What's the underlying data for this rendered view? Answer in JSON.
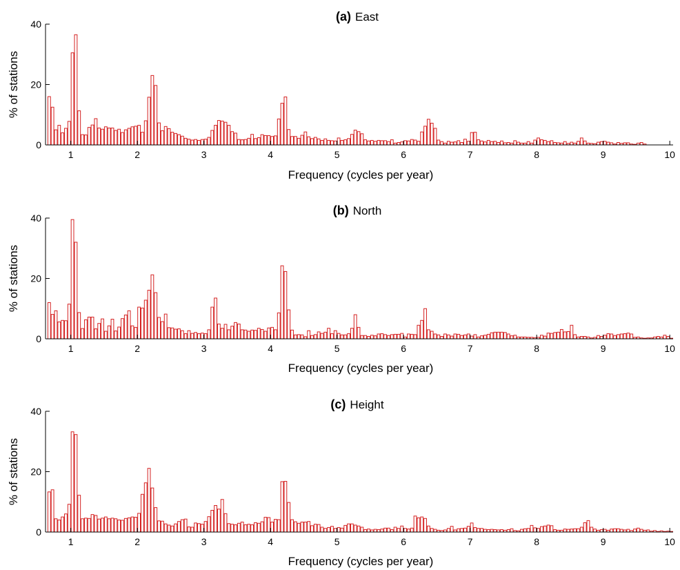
{
  "colors": {
    "bar_edge": "#d42020",
    "bar_fill": "#ffffff",
    "axis": "#000000"
  },
  "chart_data": [
    {
      "type": "bar",
      "title_prefix": "(a)",
      "title": "East",
      "xlabel": "Frequency (cycles per year)",
      "ylabel": "% of stations",
      "xlim": [
        0.62,
        10.05
      ],
      "ylim": [
        0,
        40
      ],
      "xticks": [
        "1",
        "2",
        "3",
        "4",
        "5",
        "6",
        "7",
        "8",
        "9",
        "10"
      ],
      "yticks": [
        "0",
        "20",
        "40"
      ],
      "bin_width": 0.05,
      "x_start": 0.65,
      "values": [
        16,
        12.5,
        5,
        6.5,
        4,
        5.5,
        7.8,
        30.5,
        36.5,
        11.3,
        3.4,
        3.3,
        5.8,
        6.6,
        8.7,
        5.6,
        5.2,
        6,
        5.6,
        5.6,
        4.8,
        5.2,
        4.1,
        5,
        5.5,
        6,
        6.2,
        6.5,
        4.2,
        8,
        15.8,
        23,
        19.7,
        7.3,
        4.7,
        6.1,
        5.4,
        4.2,
        3.8,
        3.4,
        2.9,
        2.2,
        1.9,
        1.6,
        1.8,
        1.5,
        1.8,
        1.9,
        2.5,
        4.8,
        6.5,
        8.1,
        7.9,
        7.5,
        6.5,
        4.4,
        3.9,
        1.8,
        1.7,
        1.8,
        2.2,
        3.5,
        2.1,
        2.4,
        3.4,
        3.1,
        3.1,
        2.8,
        3,
        8.6,
        13.8,
        15.9,
        5.1,
        2.8,
        2.8,
        2.2,
        3.2,
        4.3,
        2.7,
        2.1,
        2.5,
        2,
        1.5,
        2,
        1.5,
        1.4,
        1.3,
        2.3,
        1.5,
        1.7,
        2.1,
        3.5,
        4.9,
        4.4,
        3.7,
        1.7,
        1.3,
        1.5,
        1.2,
        1.5,
        1.4,
        1.4,
        1.1,
        1.7,
        0.6,
        0.8,
        1,
        1.4,
        1.3,
        1.8,
        1.6,
        1.2,
        4.3,
        6.2,
        8.5,
        7.2,
        5.5,
        1.6,
        1.1,
        0.6,
        1.2,
        0.9,
        1,
        1.4,
        0.8,
        1.9,
        1.2,
        4.1,
        4.2,
        1.7,
        1.3,
        1,
        1.5,
        1.1,
        1.2,
        0.8,
        1.3,
        0.7,
        0.8,
        0.6,
        1.4,
        0.9,
        0.6,
        0.6,
        1.1,
        0.6,
        1.6,
        2.3,
        1.7,
        1.5,
        1.1,
        1.4,
        0.8,
        0.7,
        0.6,
        1.1,
        0.5,
        0.9,
        0.6,
        1.2,
        2.3,
        1.3,
        0.6,
        0.5,
        0.4,
        0.9,
        1.1,
        1.2,
        0.9,
        0.7,
        0.3,
        0.8,
        0.5,
        0.7,
        0.7,
        0.3,
        0.2,
        0.6,
        0.8,
        0.3
      ]
    },
    {
      "type": "bar",
      "title_prefix": "(b)",
      "title": "North",
      "xlabel": "Frequency (cycles per year)",
      "ylabel": "% of stations",
      "xlim": [
        0.62,
        10.05
      ],
      "ylim": [
        0,
        40
      ],
      "xticks": [
        "1",
        "2",
        "3",
        "4",
        "5",
        "6",
        "7",
        "8",
        "9",
        "10"
      ],
      "yticks": [
        "0",
        "20",
        "40"
      ],
      "bin_width": 0.05,
      "x_start": 0.65,
      "values": [
        12,
        8.1,
        9.3,
        5.6,
        6.1,
        6,
        11.5,
        39.5,
        32,
        8.7,
        3.4,
        6.3,
        7.2,
        7.2,
        3.3,
        5.1,
        6.6,
        2.5,
        4.3,
        6.5,
        2.6,
        3.9,
        6.7,
        7.9,
        9.3,
        4.3,
        3.8,
        10.5,
        10.2,
        12.8,
        16.1,
        21.2,
        15.3,
        7.1,
        5.7,
        8.2,
        3.7,
        3.6,
        3.2,
        3.3,
        2.7,
        1.7,
        2.7,
        1.8,
        2.1,
        1.7,
        1.9,
        1.7,
        3,
        10.5,
        13.5,
        4.9,
        3.5,
        4.8,
        3,
        4.2,
        5.4,
        4.9,
        3,
        2.9,
        2.5,
        2.9,
        2.8,
        3.5,
        3.1,
        2.5,
        3.6,
        3.8,
        3,
        8.6,
        24.2,
        22.3,
        9.6,
        2.9,
        1.3,
        1.4,
        1.3,
        0.7,
        2.7,
        1.1,
        1.4,
        2.3,
        1.8,
        2.2,
        3.5,
        1.7,
        2.7,
        1.8,
        1.3,
        1.3,
        1.7,
        3.5,
        8,
        3.8,
        1.1,
        1.1,
        0.8,
        1.2,
        1,
        1.6,
        1.7,
        1.4,
        1.1,
        1.4,
        1.5,
        1.5,
        1.8,
        0.6,
        1.6,
        1.5,
        1.4,
        4.5,
        6.1,
        10,
        3,
        2.5,
        1.6,
        1.3,
        0.8,
        1.6,
        1.3,
        0.9,
        1.6,
        1.5,
        1.1,
        1.3,
        1.6,
        0.9,
        1.4,
        0.6,
        1,
        1.2,
        1.5,
        2,
        2.2,
        2.2,
        2.2,
        2.1,
        1.6,
        1,
        1.2,
        0.6,
        0.6,
        0.6,
        0.5,
        0.5,
        0.4,
        0.5,
        1.2,
        0.9,
        1.9,
        1.8,
        2.1,
        2.2,
        3.1,
        2.3,
        2.4,
        4.5,
        1.4,
        0.6,
        0.8,
        0.8,
        0.6,
        0.3,
        0.5,
        1.1,
        0.8,
        1.2,
        1.7,
        1.6,
        1.1,
        1.4,
        1.6,
        1.7,
        1.9,
        1.6,
        0.5,
        0.6,
        0.3,
        0.2,
        0.3,
        0.3,
        0.6,
        0.8,
        0.6,
        1.2,
        0.8,
        0.2
      ]
    },
    {
      "type": "bar",
      "title_prefix": "(c)",
      "title": "Height",
      "xlabel": "Frequency (cycles per year)",
      "ylabel": "% of stations",
      "xlim": [
        0.62,
        10.05
      ],
      "ylim": [
        0,
        40
      ],
      "xticks": [
        "1",
        "2",
        "3",
        "4",
        "5",
        "6",
        "7",
        "8",
        "9",
        "10"
      ],
      "yticks": [
        "0",
        "20",
        "40"
      ],
      "bin_width": 0.05,
      "x_start": 0.65,
      "values": [
        13.3,
        14,
        4.4,
        4,
        5,
        6,
        9.2,
        33.2,
        32.3,
        12.2,
        4.4,
        4.6,
        4.5,
        5.8,
        5.5,
        4.3,
        4.6,
        5,
        4.4,
        4.6,
        4.4,
        4,
        3.9,
        4.5,
        4.7,
        5,
        4.9,
        6.2,
        12.5,
        16.3,
        21.1,
        14.6,
        8.1,
        3.7,
        3.6,
        2.7,
        2.3,
        2,
        2.7,
        3.5,
        4.1,
        4.3,
        1.7,
        1.6,
        3,
        2.8,
        2.6,
        3.5,
        5.1,
        7.2,
        8.8,
        7.6,
        10.8,
        6.1,
        2.8,
        2.6,
        2.4,
        2.9,
        3.3,
        2.4,
        2.6,
        2.4,
        3.1,
        2.9,
        3.4,
        4.9,
        4.8,
        3.3,
        4.2,
        4.1,
        16.7,
        16.8,
        9.8,
        4.1,
        3.4,
        2.9,
        3.3,
        3.3,
        3.5,
        2.1,
        2.6,
        2.5,
        1.6,
        1.2,
        1.5,
        1.9,
        1.2,
        1.5,
        1.3,
        2.2,
        2.7,
        2.7,
        2.3,
        2,
        1.6,
        0.8,
        1,
        0.7,
        0.9,
        0.8,
        1,
        1.3,
        1.3,
        0.8,
        1.6,
        1.2,
        2,
        1.2,
        1,
        1.3,
        5.3,
        4.7,
        5,
        4.5,
        2,
        1.2,
        0.9,
        0.6,
        0.5,
        0.7,
        1.2,
        1.9,
        0.7,
        1.1,
        1.2,
        1.3,
        1.9,
        3,
        1.5,
        1.2,
        1.2,
        0.9,
        0.8,
        0.9,
        0.8,
        0.7,
        0.8,
        0.6,
        0.8,
        1.1,
        0.5,
        0.4,
        0.9,
        1.1,
        1.2,
        2.2,
        1.4,
        1.2,
        1.8,
        2,
        2.3,
        2.1,
        0.8,
        0.6,
        0.6,
        1,
        0.9,
        1,
        1.1,
        1.1,
        1.6,
        3.1,
        3.8,
        1.6,
        1,
        0.6,
        0.8,
        0.9,
        0.6,
        1,
        1.1,
        1.1,
        0.9,
        0.7,
        0.9,
        0.5,
        1,
        1.3,
        0.9,
        0.6,
        0.7,
        0.3,
        0.5,
        0.2,
        0.4,
        0.2,
        0.3,
        0.2
      ]
    }
  ]
}
